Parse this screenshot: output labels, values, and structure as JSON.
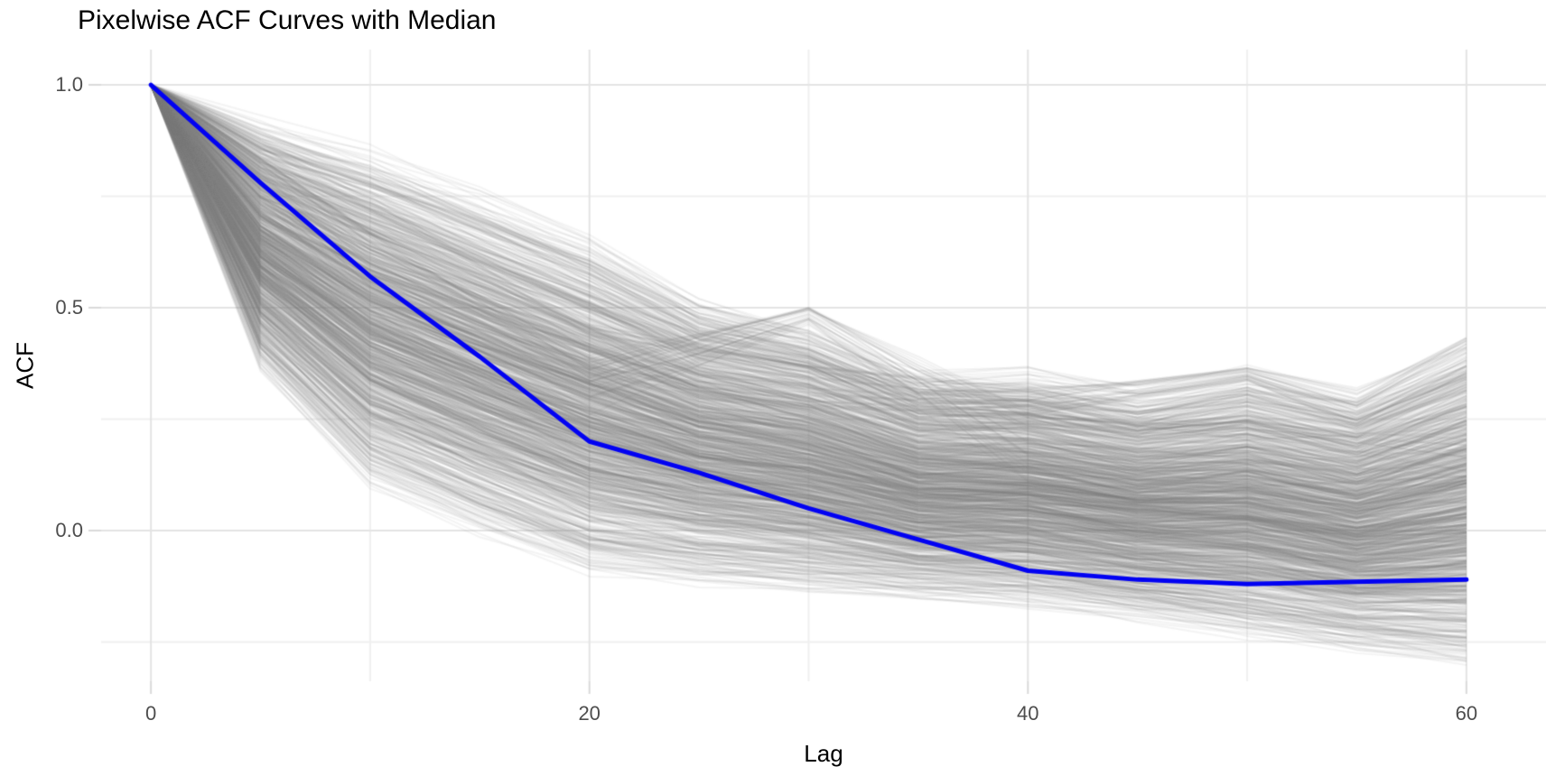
{
  "chart_data": {
    "type": "line",
    "title": "Pixelwise ACF Curves with Median",
    "xlabel": "Lag",
    "ylabel": "ACF",
    "grid": "on",
    "legend": "none",
    "background_color": "#ffffff",
    "major_grid_color": "#e4e4e4",
    "minor_grid_color": "#f0f0f0",
    "tick_mark_color": "#dadada",
    "axis_text_color": "#4d4d4d",
    "xlim": [
      -2.27,
      63.63
    ],
    "ylim": [
      -0.338,
      1.079
    ],
    "x_ticks": [
      0,
      20,
      40,
      60
    ],
    "x_tick_labels": [
      "0",
      "20",
      "40",
      "60"
    ],
    "x_minor_ticks": [
      10,
      30,
      50
    ],
    "y_ticks": [
      1.0,
      0.5,
      0.0
    ],
    "y_tick_labels": [
      "1.0",
      "0.5",
      "0.0"
    ],
    "y_minor_ticks": [
      0.75,
      0.25,
      -0.25
    ],
    "median_series": {
      "name": "Median ACF",
      "color": "#0202f2",
      "line_width": 5,
      "lags": [
        0,
        5,
        10,
        15,
        20,
        25,
        30,
        35,
        40,
        45,
        50,
        55,
        60
      ],
      "acf": [
        1.0,
        0.78,
        0.57,
        0.39,
        0.2,
        0.13,
        0.05,
        -0.02,
        -0.09,
        -0.11,
        -0.12,
        -0.115,
        -0.11
      ]
    },
    "pixel_curves": {
      "description": "Hundreds of semi-transparent gray pixelwise ACF curves, all starting at ACF 1.0 at lag 0 and fanning out into a wide band",
      "color": "#7f7f7f",
      "alpha": 0.085,
      "count": 1150,
      "lags": [
        0,
        5,
        10,
        15,
        20,
        25,
        30,
        35,
        40,
        45,
        50,
        55,
        60
      ],
      "envelope_max": [
        1.0,
        0.92,
        0.85,
        0.75,
        0.65,
        0.52,
        0.46,
        0.35,
        0.35,
        0.31,
        0.355,
        0.3,
        0.42
      ],
      "envelope_min": [
        1.0,
        0.36,
        0.095,
        -0.01,
        -0.1,
        -0.12,
        -0.14,
        -0.155,
        -0.17,
        -0.2,
        -0.24,
        -0.275,
        -0.31
      ]
    },
    "feature_bundles": [
      {
        "name": "spike-at-lag-30",
        "count": 24,
        "alpha": 0.1,
        "lags": [
          0,
          10,
          20,
          25,
          30,
          35,
          40,
          50,
          60
        ],
        "center": [
          1.0,
          0.6,
          0.34,
          0.41,
          0.485,
          0.34,
          0.2,
          0.15,
          0.13
        ],
        "spread": [
          0,
          0.08,
          0.06,
          0.04,
          0.018,
          0.05,
          0.09,
          0.1,
          0.1
        ]
      },
      {
        "name": "peak-at-lag-50-rise-at-60",
        "count": 24,
        "alpha": 0.1,
        "lags": [
          0,
          10,
          20,
          30,
          40,
          45,
          50,
          55,
          60
        ],
        "center": [
          1.0,
          0.65,
          0.4,
          0.32,
          0.285,
          0.315,
          0.35,
          0.27,
          0.38
        ],
        "spread": [
          0,
          0.08,
          0.06,
          0.05,
          0.03,
          0.02,
          0.015,
          0.04,
          0.05
        ]
      }
    ]
  }
}
